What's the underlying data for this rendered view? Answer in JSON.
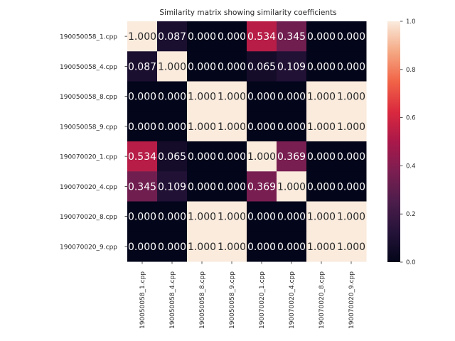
{
  "chart_data": {
    "type": "heatmap",
    "title": "Similarity matrix showing similarity coefficients",
    "xlabel": "",
    "ylabel": "",
    "row_labels": [
      "190050058_1.cpp",
      "190050058_4.cpp",
      "190050058_8.cpp",
      "190050058_9.cpp",
      "190070020_1.cpp",
      "190070020_4.cpp",
      "190070020_8.cpp",
      "190070020_9.cpp"
    ],
    "col_labels": [
      "190050058_1.cpp",
      "190050058_4.cpp",
      "190050058_8.cpp",
      "190050058_9.cpp",
      "190070020_1.cpp",
      "190070020_4.cpp",
      "190070020_8.cpp",
      "190070020_9.cpp"
    ],
    "values": [
      [
        1.0,
        0.087,
        0.0,
        0.0,
        0.534,
        0.345,
        0.0,
        0.0
      ],
      [
        0.087,
        1.0,
        0.0,
        0.0,
        0.065,
        0.109,
        0.0,
        0.0
      ],
      [
        0.0,
        0.0,
        1.0,
        1.0,
        0.0,
        0.0,
        1.0,
        1.0
      ],
      [
        0.0,
        0.0,
        1.0,
        1.0,
        0.0,
        0.0,
        1.0,
        1.0
      ],
      [
        0.534,
        0.065,
        0.0,
        0.0,
        1.0,
        0.369,
        0.0,
        0.0
      ],
      [
        0.345,
        0.109,
        0.0,
        0.0,
        0.369,
        1.0,
        0.0,
        0.0
      ],
      [
        0.0,
        0.0,
        1.0,
        1.0,
        0.0,
        0.0,
        1.0,
        1.0
      ],
      [
        0.0,
        0.0,
        1.0,
        1.0,
        0.0,
        0.0,
        1.0,
        1.0
      ]
    ],
    "value_format": "0.000",
    "colorbar": {
      "range": [
        0.0,
        1.0
      ],
      "ticks": [
        "0.0",
        "0.2",
        "0.4",
        "0.6",
        "0.8",
        "1.0"
      ],
      "colormap": "rocket"
    }
  }
}
